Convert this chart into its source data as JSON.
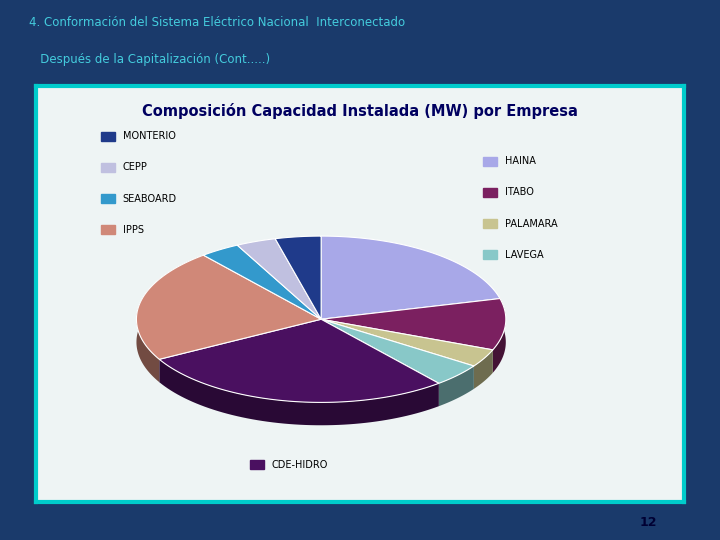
{
  "title": "Composición Capacidad Instalada (MW) por Empresa",
  "slide_title_line1": "4. Conformación del Sistema Eléctrico Nacional  Interconectado",
  "slide_title_line2": "   Después de la Capitalización (Cont.....)",
  "labels": [
    "HAINA",
    "ITABO",
    "PALAMARA",
    "LAVEGA",
    "CDE-HIDRO",
    "IPPS",
    "SEABOARD",
    "CEPP",
    "MONTERIO"
  ],
  "values": [
    21.0,
    10.0,
    3.5,
    4.5,
    28.0,
    22.0,
    3.5,
    3.5,
    4.0
  ],
  "colors": [
    "#A8A8E8",
    "#7B2060",
    "#C8C490",
    "#88C8C8",
    "#4A1060",
    "#D08878",
    "#3399CC",
    "#C0C0E0",
    "#1F3A8A"
  ],
  "bg_outer": "#1A3A6B",
  "bg_slide": "#EEF4F4",
  "border_color": "#00CCCC",
  "title_color": "#000060",
  "slide_title_color": "#44CCDD",
  "page_number": "12",
  "startangle": 90,
  "legend_left": [
    {
      "idx": 8,
      "label": "MONTERIO"
    },
    {
      "idx": 7,
      "label": "CEPP"
    },
    {
      "idx": 6,
      "label": "SEABOARD"
    },
    {
      "idx": 5,
      "label": "IPPS"
    }
  ],
  "legend_right": [
    {
      "idx": 0,
      "label": "HAINA"
    },
    {
      "idx": 1,
      "label": "ITABO"
    },
    {
      "idx": 2,
      "label": "PALAMARA"
    },
    {
      "idx": 3,
      "label": "LAVEGA"
    }
  ],
  "legend_bottom": [
    {
      "idx": 4,
      "label": "CDE-HIDRO"
    }
  ]
}
